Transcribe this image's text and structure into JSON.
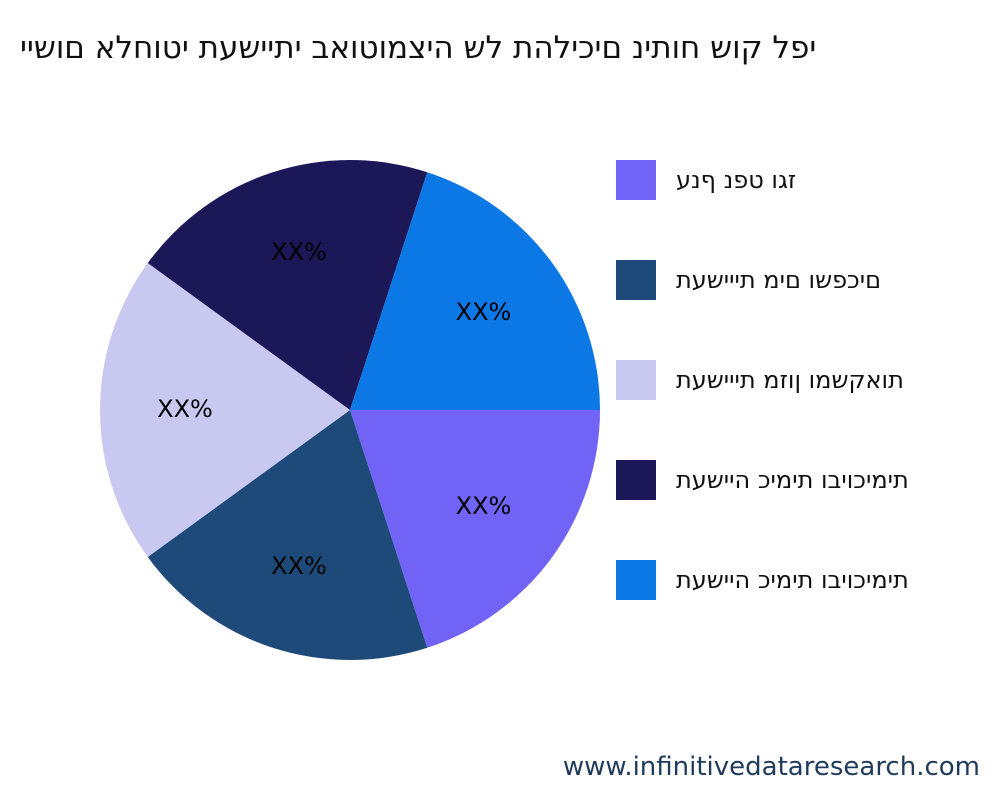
{
  "chart_data": {
    "type": "pie",
    "title": "יפל קוש חותינ םיכילהת לש היצמוטואב יתיישעת יטוחלא םושיי",
    "start_angle_deg": 0,
    "direction": "clockwise",
    "slices": [
      {
        "label": "זגו טפנ ףנע",
        "value": 20,
        "display": "XX%",
        "color": "#7163f5"
      },
      {
        "label": "םיכפשו םימ תייישעת",
        "value": 20,
        "display": "XX%",
        "color": "#1e4a7a"
      },
      {
        "label": "תואקשמו ןוזמ תייישעת",
        "value": 20,
        "display": "XX%",
        "color": "#c8c8f0"
      },
      {
        "label": "תימיכויבו תימיכ היישעת",
        "value": 20,
        "display": "XX%",
        "color": "#1c1858"
      },
      {
        "label": "תימיכויבו תימיכ היישעת",
        "value": 20,
        "display": "XX%",
        "color": "#0b78e6"
      }
    ]
  },
  "watermark": "www.infinitivedataresearch.com"
}
